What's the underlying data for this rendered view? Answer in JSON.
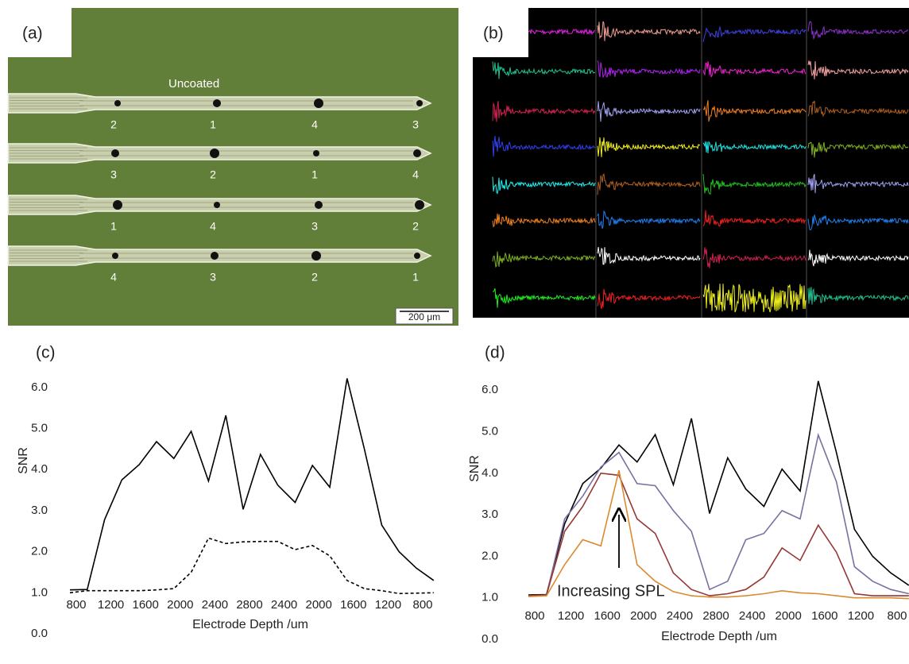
{
  "panel_a": {
    "label": "(a)",
    "caption": "Uncoated",
    "probes": [
      [
        "2",
        "1",
        "4",
        "3"
      ],
      [
        "3",
        "2",
        "1",
        "4"
      ],
      [
        "1",
        "4",
        "3",
        "2"
      ],
      [
        "4",
        "3",
        "2",
        "1"
      ]
    ],
    "scale_bar": "200 μm"
  },
  "panel_b": {
    "label": "(b)"
  },
  "chart_data": [
    {
      "type": "line",
      "label": "(c)",
      "xlabel": "Electrode Depth /um",
      "ylabel": "SNR",
      "categories": [
        "800",
        null,
        "1200",
        null,
        "1600",
        null,
        "2000",
        null,
        "2400",
        null,
        "2800",
        null,
        "2400",
        null,
        "2000",
        null,
        "1600",
        null,
        "1200",
        null,
        "800",
        null
      ],
      "ylim": [
        0,
        6.5
      ],
      "yticks": [
        {
          "value": 0,
          "label": "0.0"
        },
        {
          "value": 1,
          "label": "1.0"
        },
        {
          "value": 2,
          "label": "2.0"
        },
        {
          "value": 3,
          "label": "3.0"
        },
        {
          "value": 4,
          "label": "4.0"
        },
        {
          "value": 5,
          "label": "5.0"
        },
        {
          "value": 6,
          "label": "6.0"
        }
      ],
      "grid": false,
      "series": [
        {
          "color": "#000000",
          "line_style": "solid",
          "values": [
            1.07,
            1.08,
            2.78,
            3.75,
            4.12,
            4.68,
            4.27,
            4.93,
            3.72,
            5.32,
            3.03,
            4.37,
            3.62,
            3.2,
            4.1,
            3.57,
            6.22,
            4.5,
            2.65,
            2.0,
            1.6,
            1.3
          ]
        },
        {
          "color": "#000000",
          "line_style": "dashed",
          "values": [
            1.0,
            1.05,
            1.05,
            1.05,
            1.05,
            1.07,
            1.1,
            1.5,
            2.33,
            2.2,
            2.24,
            2.25,
            2.25,
            2.05,
            2.15,
            1.9,
            1.3,
            1.1,
            1.05,
            0.98,
            0.99,
            1.0
          ]
        }
      ]
    },
    {
      "type": "line",
      "label": "(d)",
      "xlabel": "Electrode Depth /um",
      "ylabel": "SNR",
      "annotation": "Increasing SPL",
      "categories": [
        "800",
        null,
        "1200",
        null,
        "1600",
        null,
        "2000",
        null,
        "2400",
        null,
        "2800",
        null,
        "2400",
        null,
        "2000",
        null,
        "1600",
        null,
        "1200",
        null,
        "800",
        null
      ],
      "ylim": [
        0,
        6.5
      ],
      "yticks": [
        {
          "value": 0,
          "label": "0.0"
        },
        {
          "value": 1,
          "label": "1.0"
        },
        {
          "value": 2,
          "label": "2.0"
        },
        {
          "value": 3,
          "label": "3.0"
        },
        {
          "value": 4,
          "label": "4.0"
        },
        {
          "value": 5,
          "label": "5.0"
        },
        {
          "value": 6,
          "label": "6.0"
        }
      ],
      "grid": false,
      "series": [
        {
          "color": "#000000",
          "line_style": "solid",
          "values": [
            1.07,
            1.08,
            2.78,
            3.75,
            4.12,
            4.68,
            4.27,
            4.93,
            3.72,
            5.32,
            3.03,
            4.37,
            3.62,
            3.2,
            4.1,
            3.57,
            6.22,
            4.5,
            2.65,
            2.0,
            1.6,
            1.3
          ]
        },
        {
          "color": "#7a6fa0",
          "line_style": "solid",
          "values": [
            1.05,
            1.07,
            2.9,
            3.45,
            4.15,
            4.5,
            3.75,
            3.7,
            3.1,
            2.6,
            1.2,
            1.4,
            2.4,
            2.55,
            3.1,
            2.9,
            4.92,
            3.8,
            1.75,
            1.4,
            1.2,
            1.1
          ]
        },
        {
          "color": "#953735",
          "line_style": "solid",
          "values": [
            1.05,
            1.07,
            2.6,
            3.2,
            4.0,
            3.95,
            2.9,
            2.55,
            1.6,
            1.2,
            1.05,
            1.1,
            1.2,
            1.5,
            2.2,
            1.9,
            2.75,
            2.1,
            1.1,
            1.05,
            1.05,
            1.05
          ]
        },
        {
          "color": "#d98a2f",
          "line_style": "solid",
          "values": [
            1.03,
            1.05,
            1.8,
            2.4,
            2.25,
            4.07,
            1.8,
            1.4,
            1.15,
            1.05,
            1.02,
            1.02,
            1.05,
            1.1,
            1.17,
            1.12,
            1.1,
            1.05,
            1.0,
            1.0,
            1.0,
            0.98
          ]
        }
      ]
    }
  ]
}
